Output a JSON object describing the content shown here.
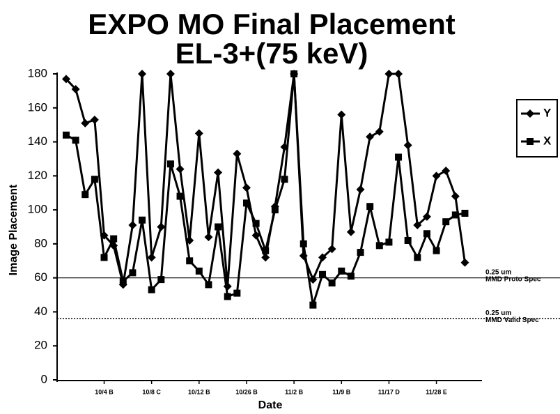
{
  "chart_data": {
    "type": "line",
    "title": "EXPO MO Final Placement",
    "subtitle": "EL-3+(75 keV)",
    "x_label": "Date",
    "y_label": "Image Placement",
    "categories": [
      null,
      null,
      null,
      null,
      "10/4 B",
      null,
      null,
      null,
      null,
      "10/8 C",
      null,
      null,
      null,
      null,
      "10/12 B",
      null,
      null,
      null,
      null,
      "10/26 B",
      null,
      null,
      null,
      null,
      "11/2 B",
      null,
      null,
      null,
      null,
      "11/9 B",
      null,
      null,
      null,
      null,
      "11/17 D",
      null,
      null,
      null,
      null,
      "11/28 E",
      null,
      null,
      null
    ],
    "series": [
      {
        "name": "Y",
        "color": "#000000",
        "marker": "diamond",
        "values": [
          177,
          171,
          151,
          153,
          85,
          79,
          56,
          91,
          180,
          72,
          90,
          180,
          124,
          82,
          145,
          84,
          122,
          55,
          133,
          113,
          85,
          72,
          102,
          137,
          180,
          73,
          59,
          72,
          77,
          156,
          87,
          112,
          143,
          146,
          180,
          180,
          138,
          91,
          96,
          120,
          123,
          108,
          69
        ]
      },
      {
        "name": "X",
        "color": "#000000",
        "marker": "square",
        "values": [
          144,
          141,
          109,
          118,
          72,
          83,
          58,
          63,
          94,
          53,
          59,
          127,
          108,
          70,
          64,
          56,
          90,
          49,
          51,
          104,
          92,
          76,
          100,
          118,
          180,
          80,
          44,
          62,
          57,
          64,
          61,
          75,
          102,
          79,
          81,
          131,
          82,
          72,
          86,
          76,
          93,
          97,
          98
        ]
      }
    ],
    "reference_lines": [
      {
        "value": 60,
        "style": "solid",
        "label": [
          "0.25 um",
          "MMD Proto Spec"
        ]
      },
      {
        "value": 36,
        "style": "dotted",
        "label": [
          "0.25 um",
          "MMD Valid Spec"
        ]
      }
    ],
    "ylim": [
      0,
      180
    ],
    "yticks": [
      0,
      20,
      40,
      60,
      80,
      100,
      120,
      140,
      160,
      180
    ],
    "legend": "right"
  }
}
